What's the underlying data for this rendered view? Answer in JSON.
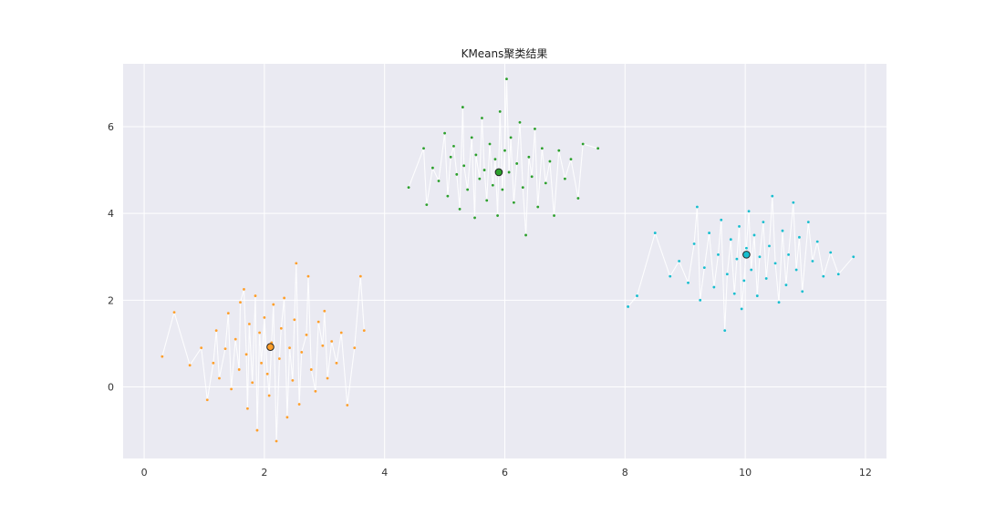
{
  "chart_data": {
    "type": "scatter",
    "title": "KMeans聚类结果",
    "xlabel": "",
    "ylabel": "",
    "xlim": [
      -0.35,
      12.35
    ],
    "ylim": [
      -1.65,
      7.45
    ],
    "xticks": [
      0,
      2,
      4,
      6,
      8,
      10,
      12
    ],
    "yticks": [
      0,
      2,
      4,
      6
    ],
    "grid": true,
    "background": "#eaeaf2",
    "grid_color": "#ffffff",
    "line_color": "#ffffff",
    "series": [
      {
        "color": "#ff9f2a",
        "centroid": [
          2.1,
          0.92
        ],
        "points": [
          [
            0.3,
            0.7
          ],
          [
            0.5,
            1.72
          ],
          [
            0.76,
            0.5
          ],
          [
            0.95,
            0.9
          ],
          [
            1.05,
            -0.3
          ],
          [
            1.15,
            0.55
          ],
          [
            1.2,
            1.3
          ],
          [
            1.25,
            0.2
          ],
          [
            1.35,
            0.88
          ],
          [
            1.4,
            1.7
          ],
          [
            1.45,
            -0.05
          ],
          [
            1.52,
            1.1
          ],
          [
            1.58,
            0.4
          ],
          [
            1.6,
            1.95
          ],
          [
            1.66,
            2.25
          ],
          [
            1.7,
            0.75
          ],
          [
            1.72,
            -0.5
          ],
          [
            1.75,
            1.45
          ],
          [
            1.8,
            0.1
          ],
          [
            1.85,
            2.1
          ],
          [
            1.88,
            -1.0
          ],
          [
            1.92,
            1.25
          ],
          [
            1.95,
            0.55
          ],
          [
            2.0,
            1.6
          ],
          [
            2.05,
            0.3
          ],
          [
            2.08,
            -0.2
          ],
          [
            2.12,
            1.02
          ],
          [
            2.15,
            1.9
          ],
          [
            2.2,
            -1.25
          ],
          [
            2.25,
            0.65
          ],
          [
            2.28,
            1.35
          ],
          [
            2.33,
            2.05
          ],
          [
            2.38,
            -0.7
          ],
          [
            2.42,
            0.9
          ],
          [
            2.47,
            0.15
          ],
          [
            2.5,
            1.55
          ],
          [
            2.53,
            2.85
          ],
          [
            2.58,
            -0.4
          ],
          [
            2.62,
            0.8
          ],
          [
            2.7,
            1.2
          ],
          [
            2.73,
            2.55
          ],
          [
            2.78,
            0.4
          ],
          [
            2.85,
            -0.1
          ],
          [
            2.9,
            1.5
          ],
          [
            2.97,
            0.95
          ],
          [
            3.0,
            1.75
          ],
          [
            3.05,
            0.2
          ],
          [
            3.12,
            1.05
          ],
          [
            3.2,
            0.55
          ],
          [
            3.28,
            1.25
          ],
          [
            3.38,
            -0.42
          ],
          [
            3.5,
            0.9
          ],
          [
            3.6,
            2.55
          ],
          [
            3.66,
            1.3
          ]
        ]
      },
      {
        "color": "#2ca02c",
        "centroid": [
          5.9,
          4.95
        ],
        "points": [
          [
            4.4,
            4.6
          ],
          [
            4.65,
            5.5
          ],
          [
            4.7,
            4.2
          ],
          [
            4.8,
            5.05
          ],
          [
            4.9,
            4.75
          ],
          [
            5.0,
            5.85
          ],
          [
            5.05,
            4.4
          ],
          [
            5.1,
            5.3
          ],
          [
            5.15,
            5.55
          ],
          [
            5.2,
            4.9
          ],
          [
            5.25,
            4.1
          ],
          [
            5.3,
            6.45
          ],
          [
            5.32,
            5.1
          ],
          [
            5.38,
            4.55
          ],
          [
            5.45,
            5.75
          ],
          [
            5.5,
            3.9
          ],
          [
            5.52,
            5.35
          ],
          [
            5.58,
            4.8
          ],
          [
            5.62,
            6.2
          ],
          [
            5.66,
            5.0
          ],
          [
            5.7,
            4.3
          ],
          [
            5.75,
            5.6
          ],
          [
            5.8,
            4.65
          ],
          [
            5.84,
            5.25
          ],
          [
            5.88,
            3.95
          ],
          [
            5.92,
            6.35
          ],
          [
            5.96,
            4.55
          ],
          [
            6.0,
            5.45
          ],
          [
            6.03,
            7.1
          ],
          [
            6.07,
            4.95
          ],
          [
            6.1,
            5.75
          ],
          [
            6.15,
            4.25
          ],
          [
            6.2,
            5.15
          ],
          [
            6.25,
            6.1
          ],
          [
            6.3,
            4.6
          ],
          [
            6.35,
            3.5
          ],
          [
            6.4,
            5.3
          ],
          [
            6.45,
            4.85
          ],
          [
            6.5,
            5.95
          ],
          [
            6.55,
            4.15
          ],
          [
            6.62,
            5.5
          ],
          [
            6.68,
            4.7
          ],
          [
            6.75,
            5.2
          ],
          [
            6.82,
            3.95
          ],
          [
            6.9,
            5.45
          ],
          [
            7.0,
            4.8
          ],
          [
            7.1,
            5.25
          ],
          [
            7.22,
            4.35
          ],
          [
            7.3,
            5.6
          ],
          [
            7.55,
            5.5
          ]
        ]
      },
      {
        "color": "#17becf",
        "centroid": [
          10.02,
          3.05
        ],
        "points": [
          [
            8.05,
            1.85
          ],
          [
            8.2,
            2.1
          ],
          [
            8.5,
            3.55
          ],
          [
            8.75,
            2.55
          ],
          [
            8.9,
            2.9
          ],
          [
            9.05,
            2.4
          ],
          [
            9.15,
            3.3
          ],
          [
            9.2,
            4.15
          ],
          [
            9.25,
            2.0
          ],
          [
            9.32,
            2.75
          ],
          [
            9.4,
            3.55
          ],
          [
            9.48,
            2.3
          ],
          [
            9.55,
            3.05
          ],
          [
            9.6,
            3.85
          ],
          [
            9.66,
            1.3
          ],
          [
            9.7,
            2.6
          ],
          [
            9.76,
            3.4
          ],
          [
            9.82,
            2.15
          ],
          [
            9.86,
            2.95
          ],
          [
            9.9,
            3.7
          ],
          [
            9.94,
            1.8
          ],
          [
            9.98,
            2.45
          ],
          [
            10.02,
            3.2
          ],
          [
            10.06,
            4.05
          ],
          [
            10.1,
            2.7
          ],
          [
            10.15,
            3.5
          ],
          [
            10.2,
            2.1
          ],
          [
            10.24,
            3.0
          ],
          [
            10.3,
            3.8
          ],
          [
            10.35,
            2.5
          ],
          [
            10.4,
            3.25
          ],
          [
            10.45,
            4.4
          ],
          [
            10.5,
            2.85
          ],
          [
            10.56,
            1.95
          ],
          [
            10.62,
            3.6
          ],
          [
            10.68,
            2.35
          ],
          [
            10.72,
            3.05
          ],
          [
            10.8,
            4.25
          ],
          [
            10.85,
            2.7
          ],
          [
            10.9,
            3.45
          ],
          [
            10.95,
            2.2
          ],
          [
            11.05,
            3.8
          ],
          [
            11.12,
            2.9
          ],
          [
            11.2,
            3.35
          ],
          [
            11.3,
            2.55
          ],
          [
            11.42,
            3.1
          ],
          [
            11.55,
            2.6
          ],
          [
            11.8,
            3.0
          ]
        ]
      }
    ]
  }
}
